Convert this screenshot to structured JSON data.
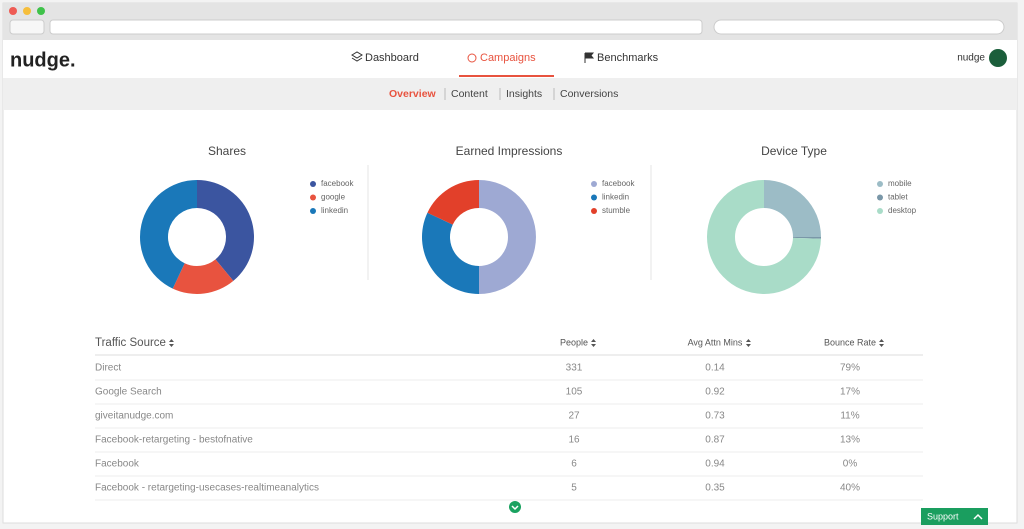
{
  "header": {
    "logo": "nudge.",
    "nav": [
      "Dashboard",
      "Campaigns",
      "Benchmarks"
    ],
    "user": "nudge"
  },
  "subnav": [
    "Overview",
    "Content",
    "Insights",
    "Conversions"
  ],
  "charts": [
    {
      "type": "pie",
      "title": "Shares",
      "categories": [
        "facebook",
        "google",
        "linkedin"
      ],
      "values": [
        39,
        18,
        43
      ],
      "colors": [
        "#3b55a0",
        "#e8533f",
        "#1a78b9"
      ]
    },
    {
      "type": "pie",
      "title": "Earned Impressions",
      "categories": [
        "facebook",
        "linkedin",
        "stumble"
      ],
      "values": [
        50,
        32,
        18
      ],
      "colors": [
        "#9ea9d3",
        "#1a78b9",
        "#e2402a"
      ]
    },
    {
      "type": "pie",
      "title": "Device Type",
      "categories": [
        "mobile",
        "tablet",
        "desktop"
      ],
      "values": [
        25,
        0.5,
        74.5
      ],
      "colors": [
        "#9cbcc6",
        "#7a97a8",
        "#a9dcc8"
      ]
    }
  ],
  "table": {
    "columns": [
      "Traffic Source",
      "People",
      "Avg Attn Mins",
      "Bounce Rate"
    ],
    "rows": [
      [
        "Direct",
        "331",
        "0.14",
        "79%"
      ],
      [
        "Google Search",
        "105",
        "0.92",
        "17%"
      ],
      [
        "giveitanudge.com",
        "27",
        "0.73",
        "11%"
      ],
      [
        "Facebook-retargeting - bestofnative",
        "16",
        "0.87",
        "13%"
      ],
      [
        "Facebook",
        "6",
        "0.94",
        "0%"
      ],
      [
        "Facebook - retargeting-usecases-realtimeanalytics",
        "5",
        "0.35",
        "40%"
      ]
    ]
  },
  "support": "Support"
}
